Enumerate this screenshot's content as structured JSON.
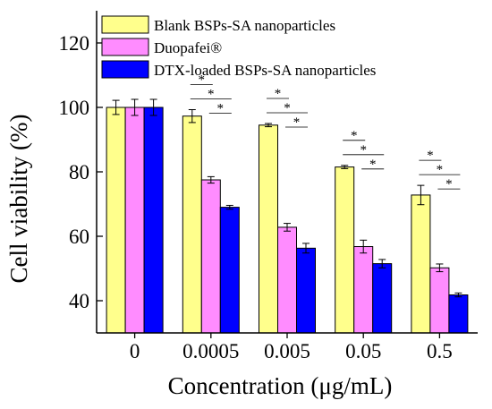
{
  "chart_data": {
    "type": "bar",
    "xlabel": "Concentration (μg/mL)",
    "ylabel": "Cell viability (%)",
    "categories": [
      "0",
      "0.0005",
      "0.005",
      "0.05",
      "0.5"
    ],
    "ylim": [
      30,
      130
    ],
    "yticks": [
      40,
      60,
      80,
      100,
      120
    ],
    "grid": false,
    "legend_position": "top-left",
    "series": [
      {
        "name": "Blank BSPs-SA nanoparticles",
        "color": "#ffff8c",
        "values": [
          100,
          97.3,
          94.5,
          81.5,
          72.8
        ],
        "errors": [
          2.2,
          2.0,
          0.5,
          0.5,
          3.0
        ]
      },
      {
        "name": "Duopafei®",
        "color": "#ff8cff",
        "values": [
          100,
          77.5,
          62.8,
          56.8,
          50.2
        ],
        "errors": [
          2.5,
          1.0,
          1.2,
          2.0,
          1.2
        ]
      },
      {
        "name": "DTX-loaded BSPs-SA nanoparticles",
        "color": "#0000ff",
        "values": [
          100,
          69.0,
          56.3,
          51.5,
          41.8
        ],
        "errors": [
          2.5,
          0.6,
          1.5,
          1.3,
          0.6
        ]
      }
    ],
    "significance_marker": "*"
  }
}
